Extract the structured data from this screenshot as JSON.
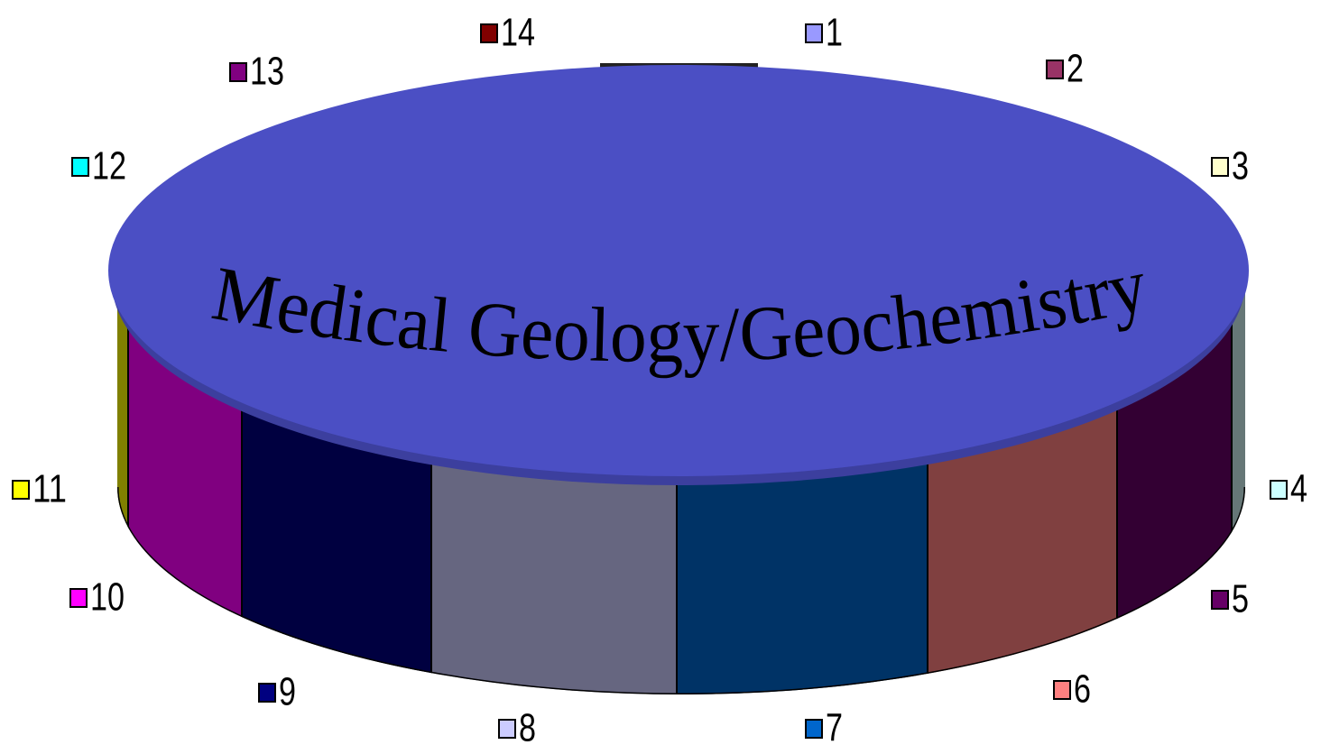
{
  "title": "Medical Geology/Geochemistry",
  "legend": [
    {
      "label": "1",
      "color": "#9999ff"
    },
    {
      "label": "2",
      "color": "#993366"
    },
    {
      "label": "3",
      "color": "#ffffcc"
    },
    {
      "label": "4",
      "color": "#ccffff"
    },
    {
      "label": "5",
      "color": "#660066"
    },
    {
      "label": "6",
      "color": "#ff8080"
    },
    {
      "label": "7",
      "color": "#0066cc"
    },
    {
      "label": "8",
      "color": "#ccccff"
    },
    {
      "label": "9",
      "color": "#000080"
    },
    {
      "label": "10",
      "color": "#ff00ff"
    },
    {
      "label": "11",
      "color": "#ffff00"
    },
    {
      "label": "12",
      "color": "#00ffff"
    },
    {
      "label": "13",
      "color": "#800080"
    },
    {
      "label": "14",
      "color": "#800000"
    }
  ]
}
